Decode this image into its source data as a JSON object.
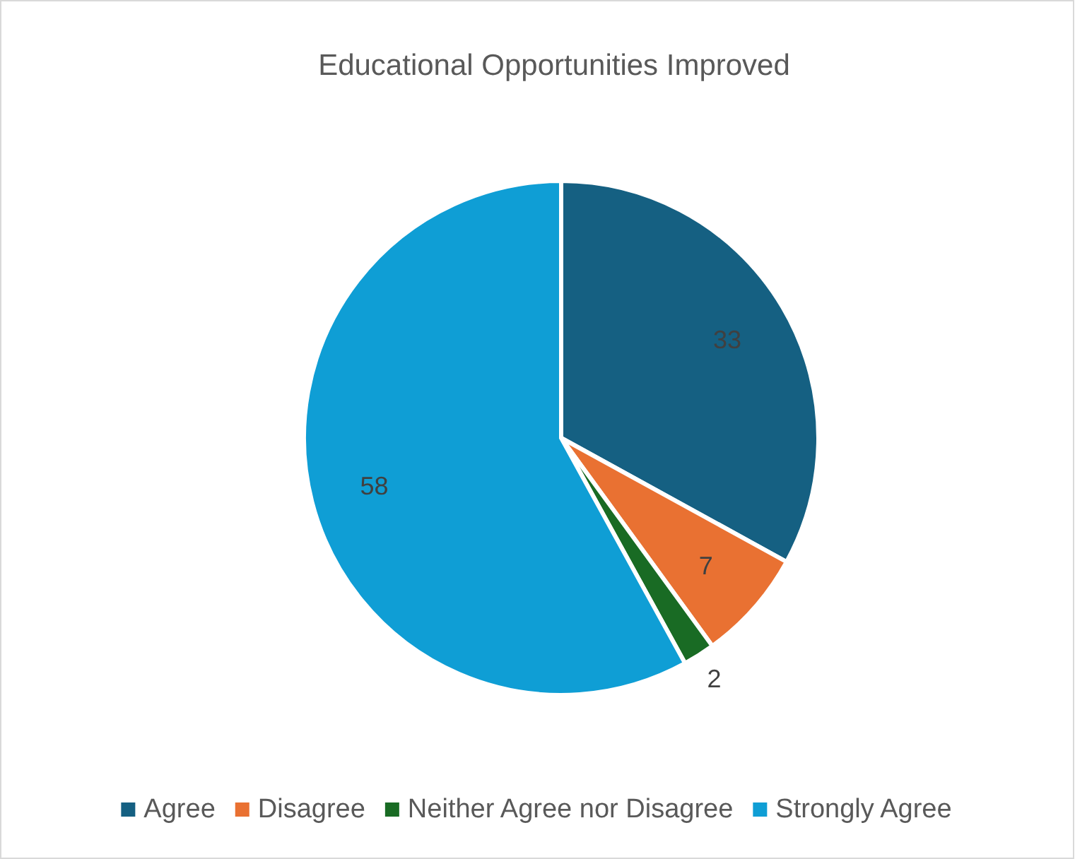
{
  "chart_data": {
    "type": "pie",
    "title": "Educational Opportunities Improved",
    "categories": [
      "Agree",
      "Disagree",
      "Neither Agree nor Disagree",
      "Strongly Agree"
    ],
    "values": [
      33,
      7,
      2,
      58
    ],
    "colors": [
      "#156082",
      "#e97132",
      "#196b24",
      "#0f9ed5"
    ],
    "data_labels": true,
    "legend": "bottom"
  }
}
